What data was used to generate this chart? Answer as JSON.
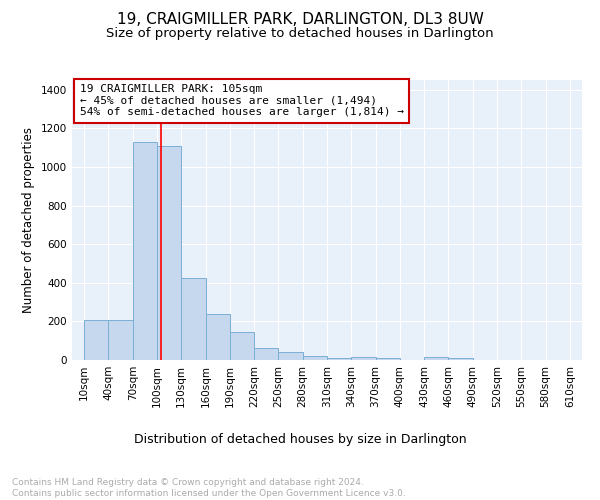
{
  "title": "19, CRAIGMILLER PARK, DARLINGTON, DL3 8UW",
  "subtitle": "Size of property relative to detached houses in Darlington",
  "xlabel": "Distribution of detached houses by size in Darlington",
  "ylabel": "Number of detached properties",
  "bar_color": "#c5d8ee",
  "bar_edge_color": "#7bafd4",
  "background_color": "#e8f0fa",
  "grid_color": "#ffffff",
  "red_line_x": 105,
  "annotation_text": "19 CRAIGMILLER PARK: 105sqm\n← 45% of detached houses are smaller (1,494)\n54% of semi-detached houses are larger (1,814) →",
  "annotation_box_color": "#ffffff",
  "annotation_box_edge": "#cc0000",
  "bins": [
    10,
    40,
    70,
    100,
    130,
    160,
    190,
    220,
    250,
    280,
    310,
    340,
    370,
    400,
    430,
    460,
    490,
    520,
    550,
    580,
    610
  ],
  "counts": [
    207,
    207,
    1127,
    1107,
    424,
    238,
    144,
    60,
    43,
    20,
    10,
    13,
    10,
    0,
    14,
    10,
    0,
    0,
    0,
    0
  ],
  "xtick_labels": [
    "10sqm",
    "40sqm",
    "70sqm",
    "100sqm",
    "130sqm",
    "160sqm",
    "190sqm",
    "220sqm",
    "250sqm",
    "280sqm",
    "310sqm",
    "340sqm",
    "370sqm",
    "400sqm",
    "430sqm",
    "460sqm",
    "490sqm",
    "520sqm",
    "550sqm",
    "580sqm",
    "610sqm"
  ],
  "ylim": [
    0,
    1450
  ],
  "yticks": [
    0,
    200,
    400,
    600,
    800,
    1000,
    1200,
    1400
  ],
  "footnote": "Contains HM Land Registry data © Crown copyright and database right 2024.\nContains public sector information licensed under the Open Government Licence v3.0.",
  "footnote_color": "#aaaaaa",
  "title_fontsize": 11,
  "subtitle_fontsize": 9.5,
  "xlabel_fontsize": 9,
  "ylabel_fontsize": 8.5,
  "annotation_fontsize": 8,
  "footnote_fontsize": 6.5,
  "tick_fontsize": 7.5
}
